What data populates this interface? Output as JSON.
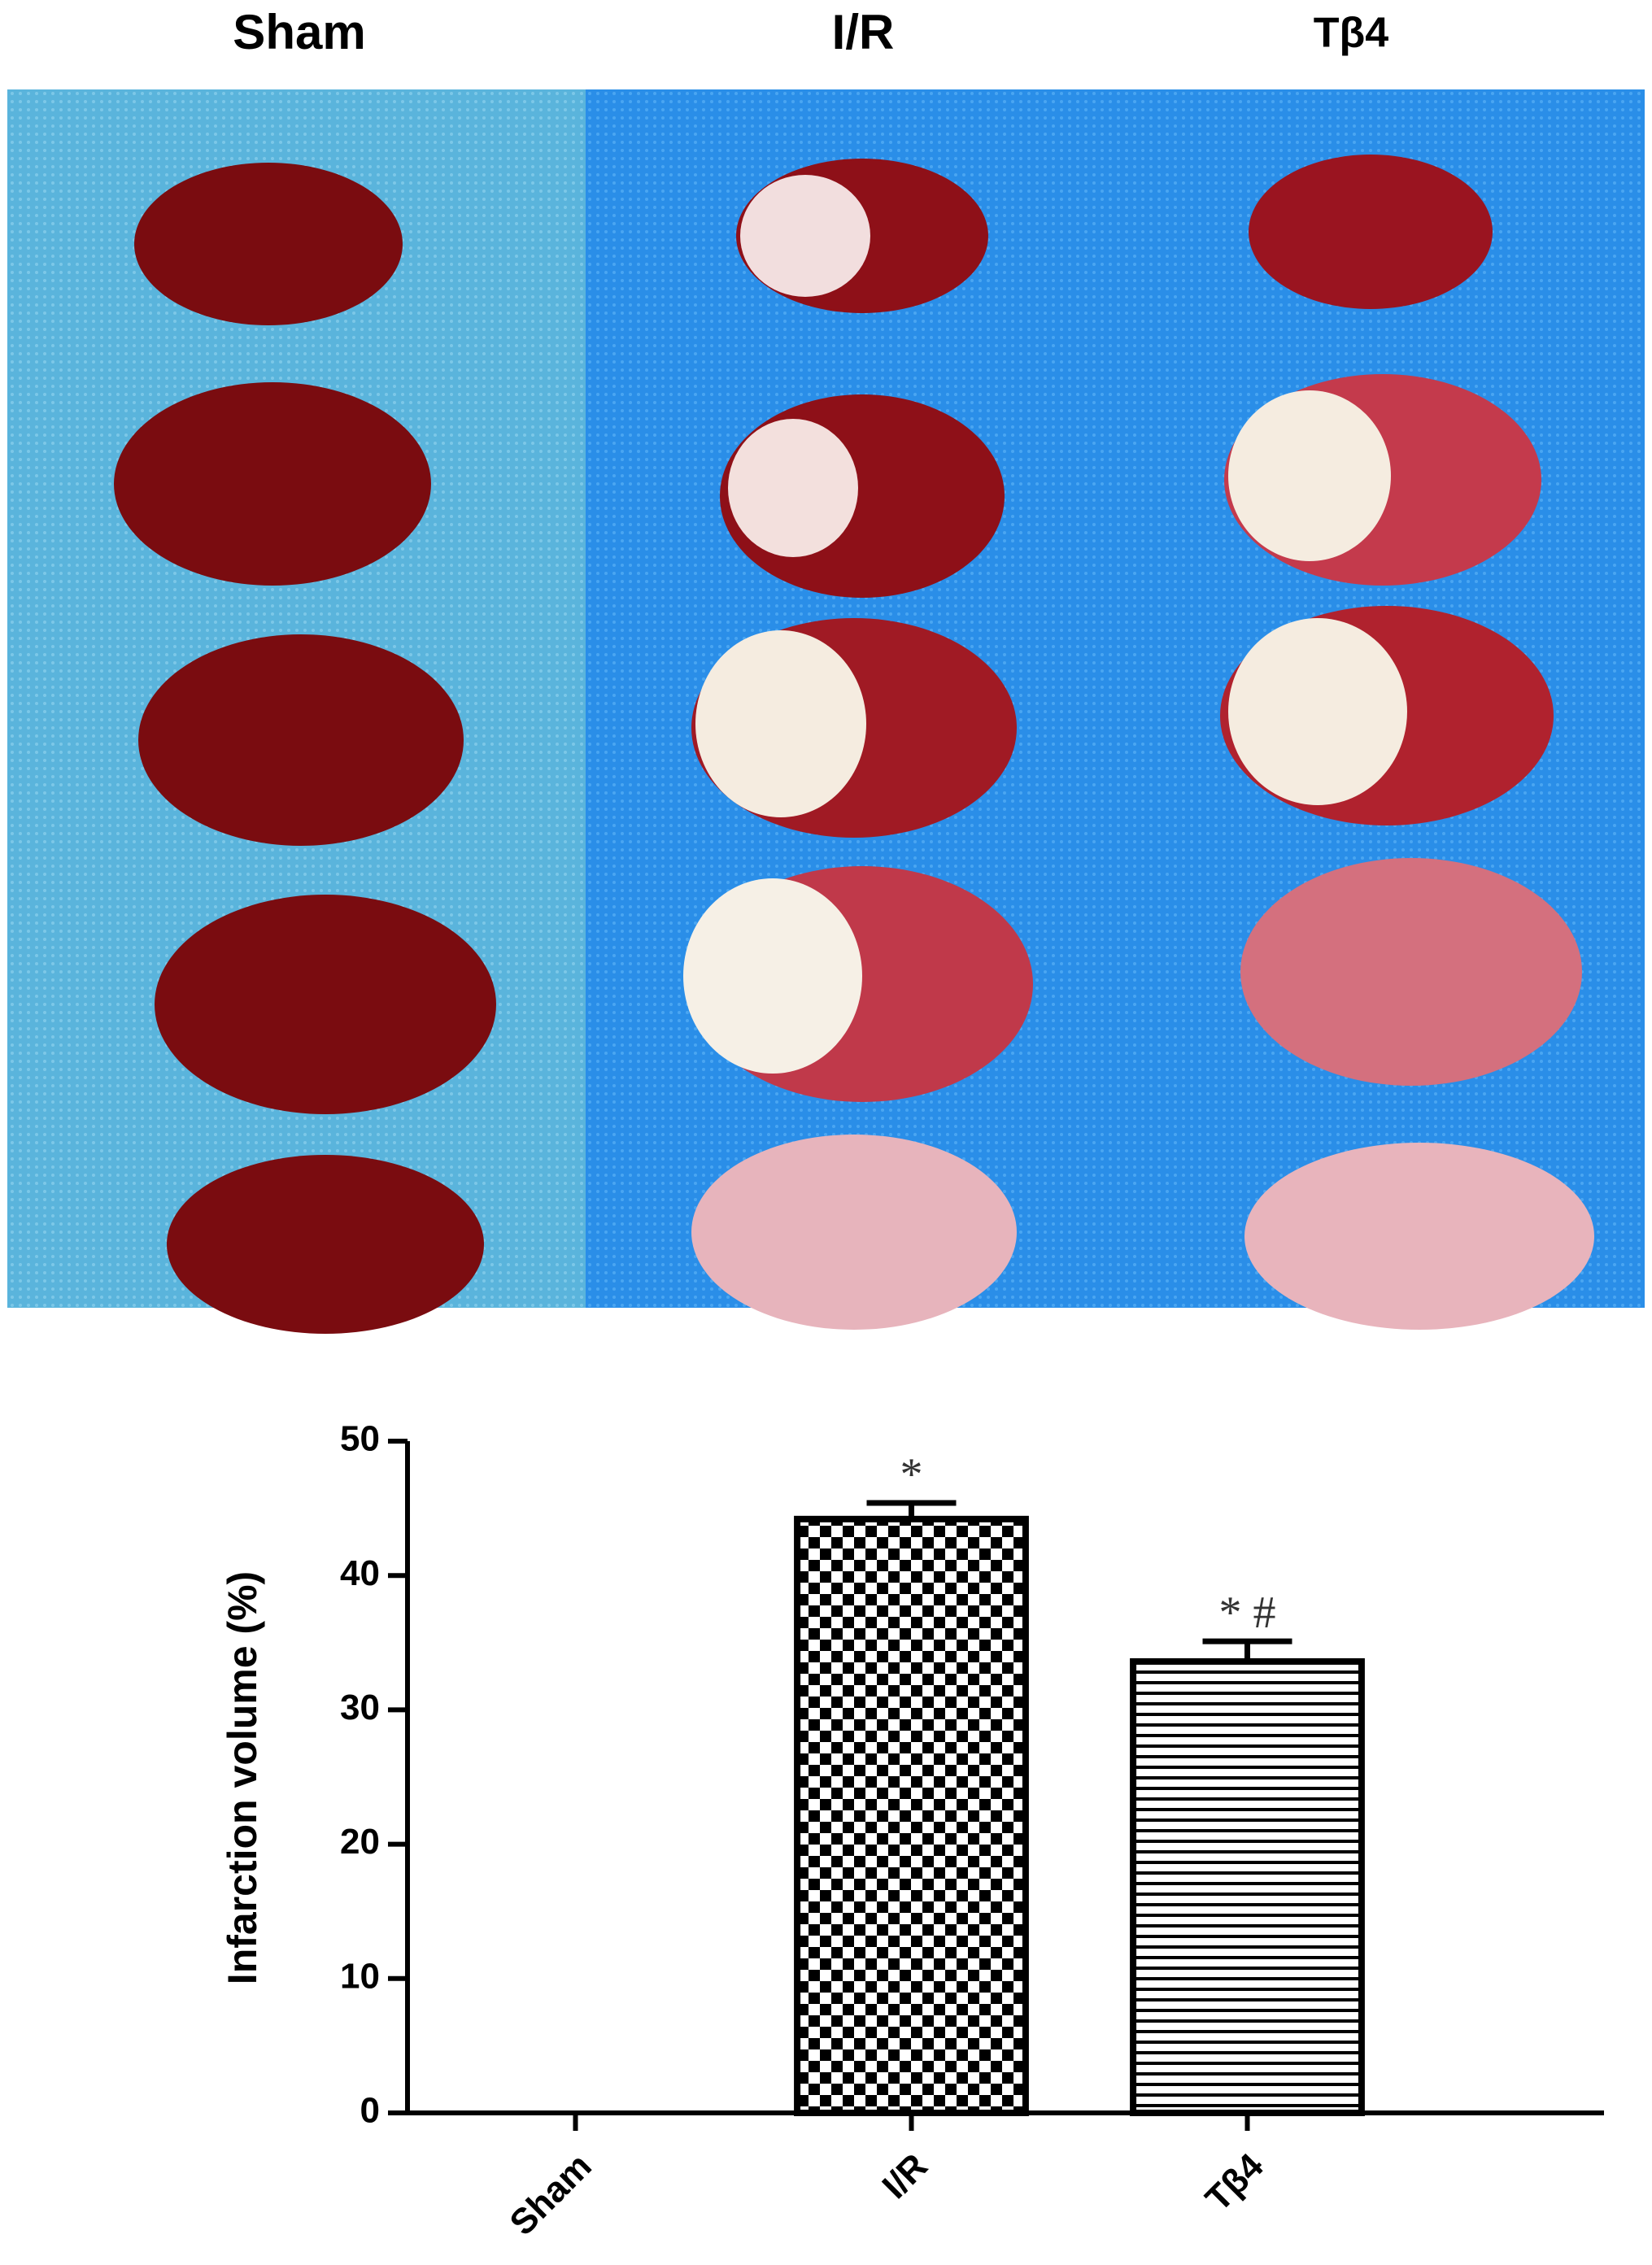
{
  "photo_panel": {
    "labels": [
      "Sham",
      "I/R",
      "Tβ4"
    ]
  },
  "chart_data": {
    "type": "bar",
    "y_label": "Infarction volume (%)",
    "categories": [
      "Sham",
      "I/R",
      "Tβ4"
    ],
    "values": [
      0,
      44.2,
      33.6
    ],
    "errors": [
      null,
      1.2,
      1.5
    ],
    "value_annotations": [
      null,
      "*",
      "* #"
    ],
    "patterns": [
      "solid",
      "checkerboard",
      "horizontal-lines"
    ],
    "color": "#000000",
    "ylim": [
      0,
      50
    ],
    "yticks": [
      0,
      10,
      20,
      30,
      40,
      50
    ],
    "grid": false
  }
}
